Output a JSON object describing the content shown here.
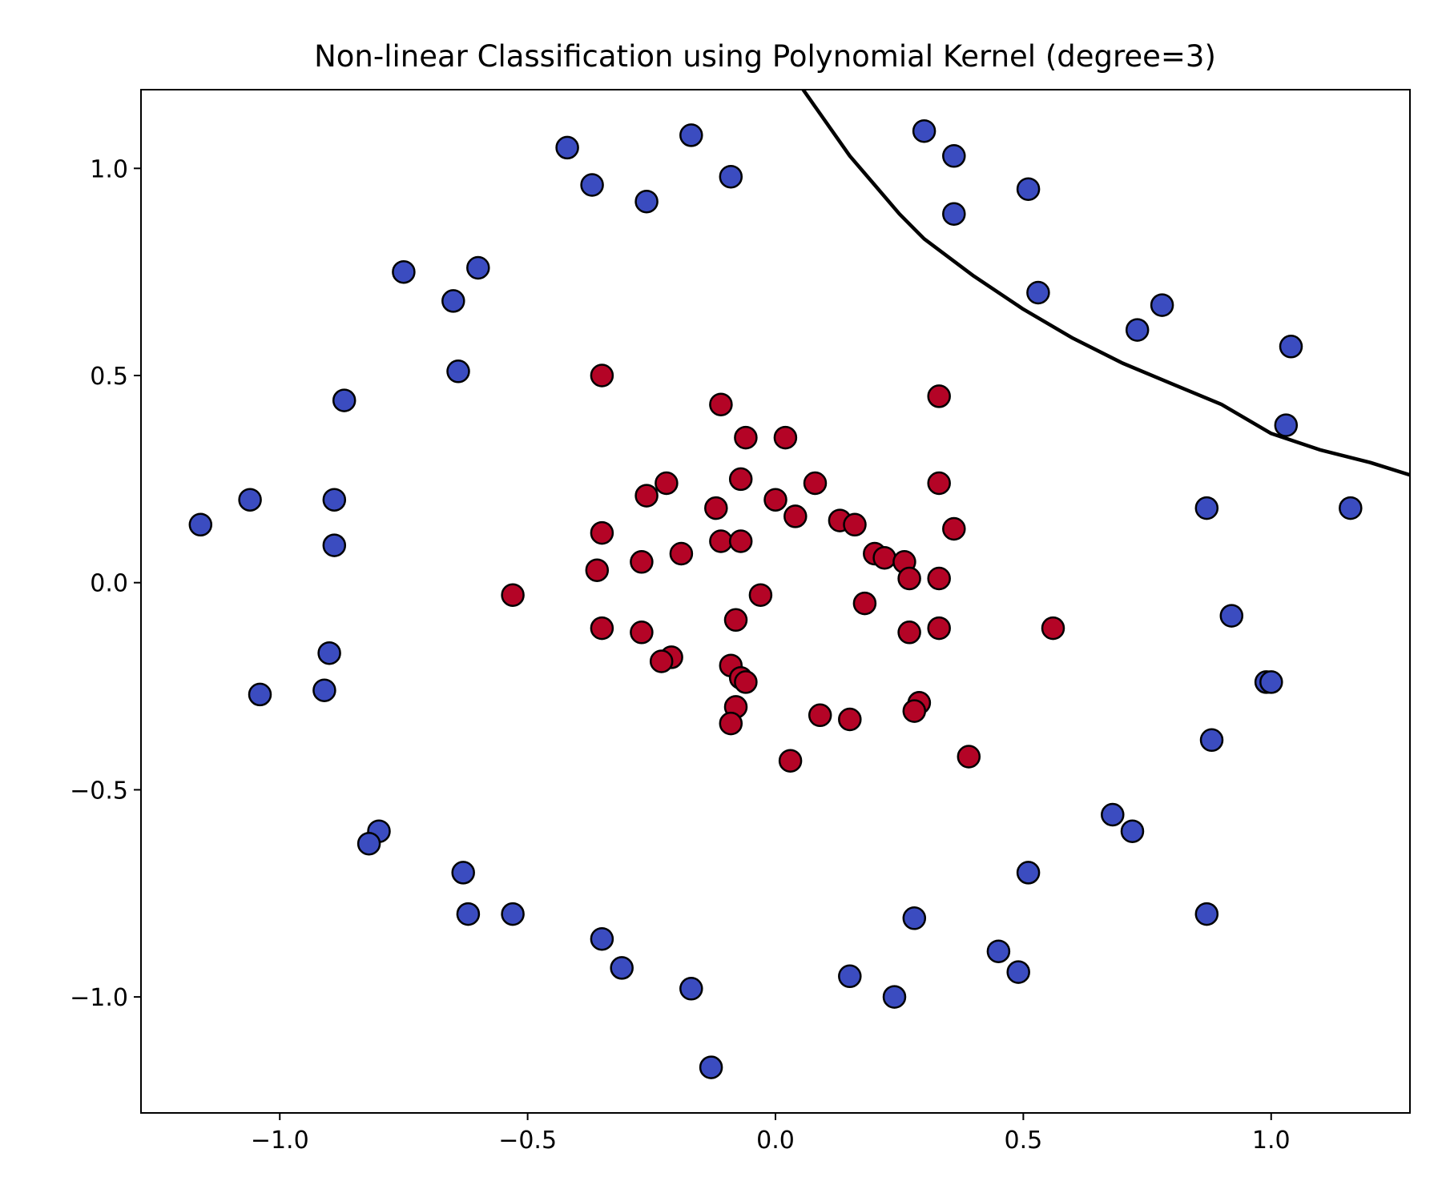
{
  "chart_data": {
    "type": "scatter",
    "title": "Non-linear Classification using Polynomial Kernel (degree=3)",
    "xlabel": "",
    "ylabel": "",
    "xlim": [
      -1.28,
      1.28
    ],
    "ylim": [
      -1.28,
      1.19
    ],
    "xticks": [
      -1.0,
      -0.5,
      0.0,
      0.5,
      1.0
    ],
    "xtick_labels": [
      "−1.0",
      "−0.5",
      "0.0",
      "0.5",
      "1.0"
    ],
    "yticks": [
      1.0,
      0.5,
      0.0,
      -0.5,
      -1.0
    ],
    "ytick_labels": [
      "1.0",
      "0.5",
      "0.0",
      "−0.5",
      "−1.0"
    ],
    "grid": false,
    "legend": "none",
    "colors": {
      "outer": "#3b4cc0",
      "inner": "#b40426",
      "edge": "#000000",
      "boundary": "#000000"
    },
    "series": [
      {
        "class": "outer",
        "points": [
          [
            -1.16,
            0.14
          ],
          [
            -1.06,
            0.2
          ],
          [
            -0.89,
            0.2
          ],
          [
            -0.89,
            0.09
          ],
          [
            -0.87,
            0.44
          ],
          [
            -0.75,
            0.75
          ],
          [
            -0.65,
            0.68
          ],
          [
            -0.64,
            0.51
          ],
          [
            -0.6,
            0.76
          ],
          [
            -0.42,
            1.05
          ],
          [
            -0.37,
            0.96
          ],
          [
            -0.26,
            0.92
          ],
          [
            -0.17,
            1.08
          ],
          [
            -0.09,
            0.98
          ],
          [
            0.3,
            1.09
          ],
          [
            0.36,
            1.03
          ],
          [
            0.36,
            0.89
          ],
          [
            0.51,
            0.95
          ],
          [
            0.53,
            0.7
          ],
          [
            0.73,
            0.61
          ],
          [
            0.78,
            0.67
          ],
          [
            1.04,
            0.57
          ],
          [
            1.03,
            0.38
          ],
          [
            0.87,
            0.18
          ],
          [
            1.16,
            0.18
          ],
          [
            0.92,
            -0.08
          ],
          [
            0.99,
            -0.24
          ],
          [
            1.0,
            -0.24
          ],
          [
            0.88,
            -0.38
          ],
          [
            0.68,
            -0.56
          ],
          [
            0.72,
            -0.6
          ],
          [
            0.51,
            -0.7
          ],
          [
            0.87,
            -0.8
          ],
          [
            0.28,
            -0.81
          ],
          [
            0.45,
            -0.89
          ],
          [
            0.49,
            -0.94
          ],
          [
            0.15,
            -0.95
          ],
          [
            0.24,
            -1.0
          ],
          [
            -0.17,
            -0.98
          ],
          [
            -0.13,
            -1.17
          ],
          [
            -0.31,
            -0.93
          ],
          [
            -0.35,
            -0.86
          ],
          [
            -0.53,
            -0.8
          ],
          [
            -0.62,
            -0.8
          ],
          [
            -0.63,
            -0.7
          ],
          [
            -0.8,
            -0.6
          ],
          [
            -0.82,
            -0.63
          ],
          [
            -1.04,
            -0.27
          ],
          [
            -0.91,
            -0.26
          ],
          [
            -0.9,
            -0.17
          ]
        ]
      },
      {
        "class": "inner",
        "points": [
          [
            -0.35,
            0.5
          ],
          [
            -0.11,
            0.43
          ],
          [
            -0.06,
            0.35
          ],
          [
            0.02,
            0.35
          ],
          [
            0.33,
            0.45
          ],
          [
            -0.07,
            0.25
          ],
          [
            0.08,
            0.24
          ],
          [
            0.33,
            0.24
          ],
          [
            -0.22,
            0.24
          ],
          [
            -0.26,
            0.21
          ],
          [
            -0.12,
            0.18
          ],
          [
            0.0,
            0.2
          ],
          [
            0.04,
            0.16
          ],
          [
            0.13,
            0.15
          ],
          [
            0.16,
            0.14
          ],
          [
            0.36,
            0.13
          ],
          [
            -0.35,
            0.12
          ],
          [
            -0.11,
            0.1
          ],
          [
            -0.07,
            0.1
          ],
          [
            -0.19,
            0.07
          ],
          [
            0.2,
            0.07
          ],
          [
            0.22,
            0.06
          ],
          [
            0.26,
            0.05
          ],
          [
            -0.27,
            0.05
          ],
          [
            -0.36,
            0.03
          ],
          [
            0.27,
            0.01
          ],
          [
            0.33,
            0.01
          ],
          [
            -0.53,
            -0.03
          ],
          [
            -0.03,
            -0.03
          ],
          [
            0.18,
            -0.05
          ],
          [
            -0.08,
            -0.09
          ],
          [
            0.56,
            -0.11
          ],
          [
            0.33,
            -0.11
          ],
          [
            0.27,
            -0.12
          ],
          [
            -0.35,
            -0.11
          ],
          [
            -0.27,
            -0.12
          ],
          [
            -0.21,
            -0.18
          ],
          [
            -0.23,
            -0.19
          ],
          [
            -0.09,
            -0.2
          ],
          [
            -0.07,
            -0.23
          ],
          [
            -0.06,
            -0.24
          ],
          [
            -0.08,
            -0.3
          ],
          [
            0.29,
            -0.29
          ],
          [
            0.28,
            -0.31
          ],
          [
            0.09,
            -0.32
          ],
          [
            0.15,
            -0.33
          ],
          [
            -0.09,
            -0.34
          ],
          [
            0.03,
            -0.43
          ],
          [
            0.39,
            -0.42
          ]
        ]
      }
    ],
    "decision_boundary": [
      [
        0.05,
        1.2
      ],
      [
        0.15,
        1.03
      ],
      [
        0.2,
        0.96
      ],
      [
        0.25,
        0.89
      ],
      [
        0.3,
        0.83
      ],
      [
        0.4,
        0.74
      ],
      [
        0.5,
        0.66
      ],
      [
        0.6,
        0.59
      ],
      [
        0.7,
        0.53
      ],
      [
        0.8,
        0.48
      ],
      [
        0.9,
        0.43
      ],
      [
        1.0,
        0.36
      ],
      [
        1.1,
        0.32
      ],
      [
        1.2,
        0.29
      ],
      [
        1.28,
        0.26
      ]
    ]
  }
}
